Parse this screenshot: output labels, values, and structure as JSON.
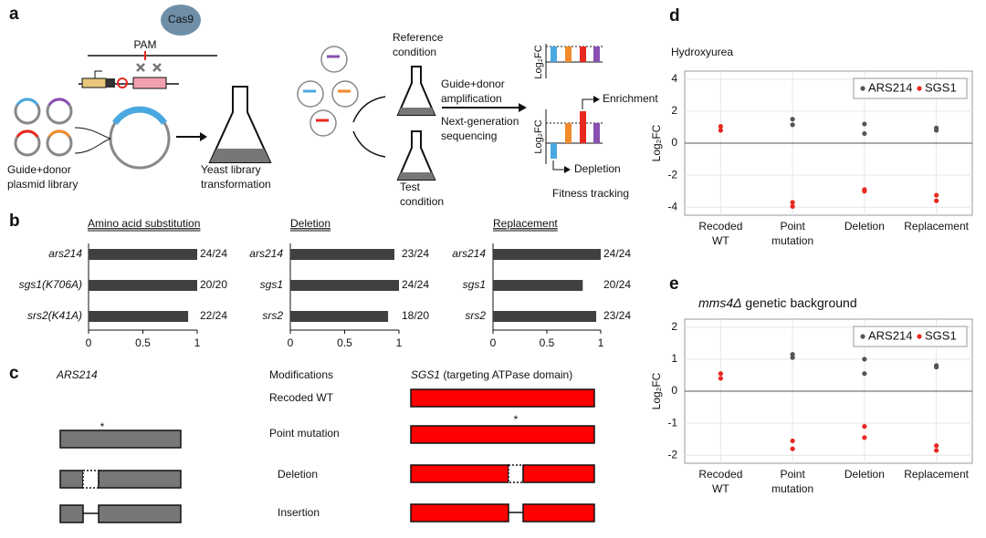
{
  "panels": {
    "a": "a",
    "b": "b",
    "c": "c",
    "d": "d",
    "e": "e"
  },
  "a": {
    "cas9": "Cas9",
    "pam": "PAM",
    "library": [
      "Guide+donor",
      "plasmid library"
    ],
    "transformation": [
      "Yeast library",
      "transformation"
    ],
    "reference": [
      "Reference",
      "condition"
    ],
    "test": [
      "Test",
      "condition"
    ],
    "amplification": [
      "Guide+donor",
      "amplification"
    ],
    "sequencing": [
      "Next-generation",
      "sequencing"
    ],
    "log2fc": "Log₂FC",
    "enrichment": "Enrichment",
    "depletion": "Depletion",
    "fitness": "Fitness tracking"
  },
  "c": {
    "left_title": "ARS214",
    "modifications_title": "Modifications",
    "right_title_italic": "SGS1",
    "right_title_rest": " (targeting ATPase domain)",
    "modifications": [
      "Recoded WT",
      "Point mutation",
      "Deletion",
      "Insertion"
    ],
    "star": "*"
  },
  "chart_data": [
    {
      "type": "bar",
      "orientation": "horizontal",
      "title": "Amino acid substitution",
      "categories": [
        "ars214",
        "sgs1(K706A)",
        "srs2(K41A)"
      ],
      "values": [
        1,
        1,
        0.917
      ],
      "value_labels": [
        "24/24",
        "20/20",
        "22/24"
      ],
      "color": "#404040",
      "xlim": [
        0,
        1
      ],
      "xticks": [
        0,
        0.5,
        1
      ]
    },
    {
      "type": "bar",
      "orientation": "horizontal",
      "title": "Deletion",
      "categories": [
        "ars214",
        "sgs1",
        "srs2"
      ],
      "values": [
        0.958,
        1,
        0.9
      ],
      "value_labels": [
        "23/24",
        "24/24",
        "18/20"
      ],
      "color": "#404040",
      "xlim": [
        0,
        1
      ],
      "xticks": [
        0,
        0.5,
        1
      ]
    },
    {
      "type": "bar",
      "orientation": "horizontal",
      "title": "Replacement",
      "categories": [
        "ars214",
        "sgs1",
        "srs2"
      ],
      "values": [
        1,
        0.833,
        0.958
      ],
      "value_labels": [
        "24/24",
        "20/24",
        "23/24"
      ],
      "color": "#404040",
      "xlim": [
        0,
        1
      ],
      "xticks": [
        0,
        0.5,
        1
      ]
    },
    {
      "type": "scatter",
      "title": "Hydroxyurea",
      "y_label": "Log₂FC",
      "categories": [
        [
          "Recoded",
          "WT"
        ],
        [
          "Point",
          "mutation"
        ],
        [
          "Deletion"
        ],
        [
          "Replacement"
        ]
      ],
      "series": [
        {
          "name": "ARS214",
          "color": "#555555",
          "values": [
            [
              null,
              null
            ],
            [
              1.5,
              1.15
            ],
            [
              1.2,
              0.6
            ],
            [
              0.95,
              0.8
            ]
          ]
        },
        {
          "name": "SGS1",
          "color": "#e8281e",
          "values": [
            [
              1.05,
              0.8
            ],
            [
              -3.7,
              -3.95
            ],
            [
              -2.9,
              -3.0
            ],
            [
              -3.25,
              -3.6
            ]
          ]
        }
      ],
      "ylim": [
        -4.5,
        4.5
      ],
      "yticks": [
        -4,
        -2,
        0,
        2,
        4
      ],
      "grid": true,
      "legend": "upper right"
    },
    {
      "type": "scatter",
      "title_italic": "mms4Δ",
      "title": " genetic background",
      "y_label": "Log₂FC",
      "categories": [
        [
          "Recoded",
          "WT"
        ],
        [
          "Point",
          "mutation"
        ],
        [
          "Deletion"
        ],
        [
          "Replacement"
        ]
      ],
      "series": [
        {
          "name": "ARS214",
          "color": "#555555",
          "values": [
            [
              null,
              null
            ],
            [
              1.15,
              1.05
            ],
            [
              1.0,
              0.55
            ],
            [
              0.8,
              0.75
            ]
          ]
        },
        {
          "name": "SGS1",
          "color": "#e8281e",
          "values": [
            [
              0.55,
              0.4
            ],
            [
              -1.55,
              -1.8
            ],
            [
              -1.1,
              -1.45
            ],
            [
              -1.7,
              -1.85
            ]
          ]
        }
      ],
      "ylim": [
        -2.25,
        2.25
      ],
      "yticks": [
        -2,
        -1,
        0,
        1,
        2
      ],
      "grid": true,
      "legend": "upper right"
    }
  ]
}
